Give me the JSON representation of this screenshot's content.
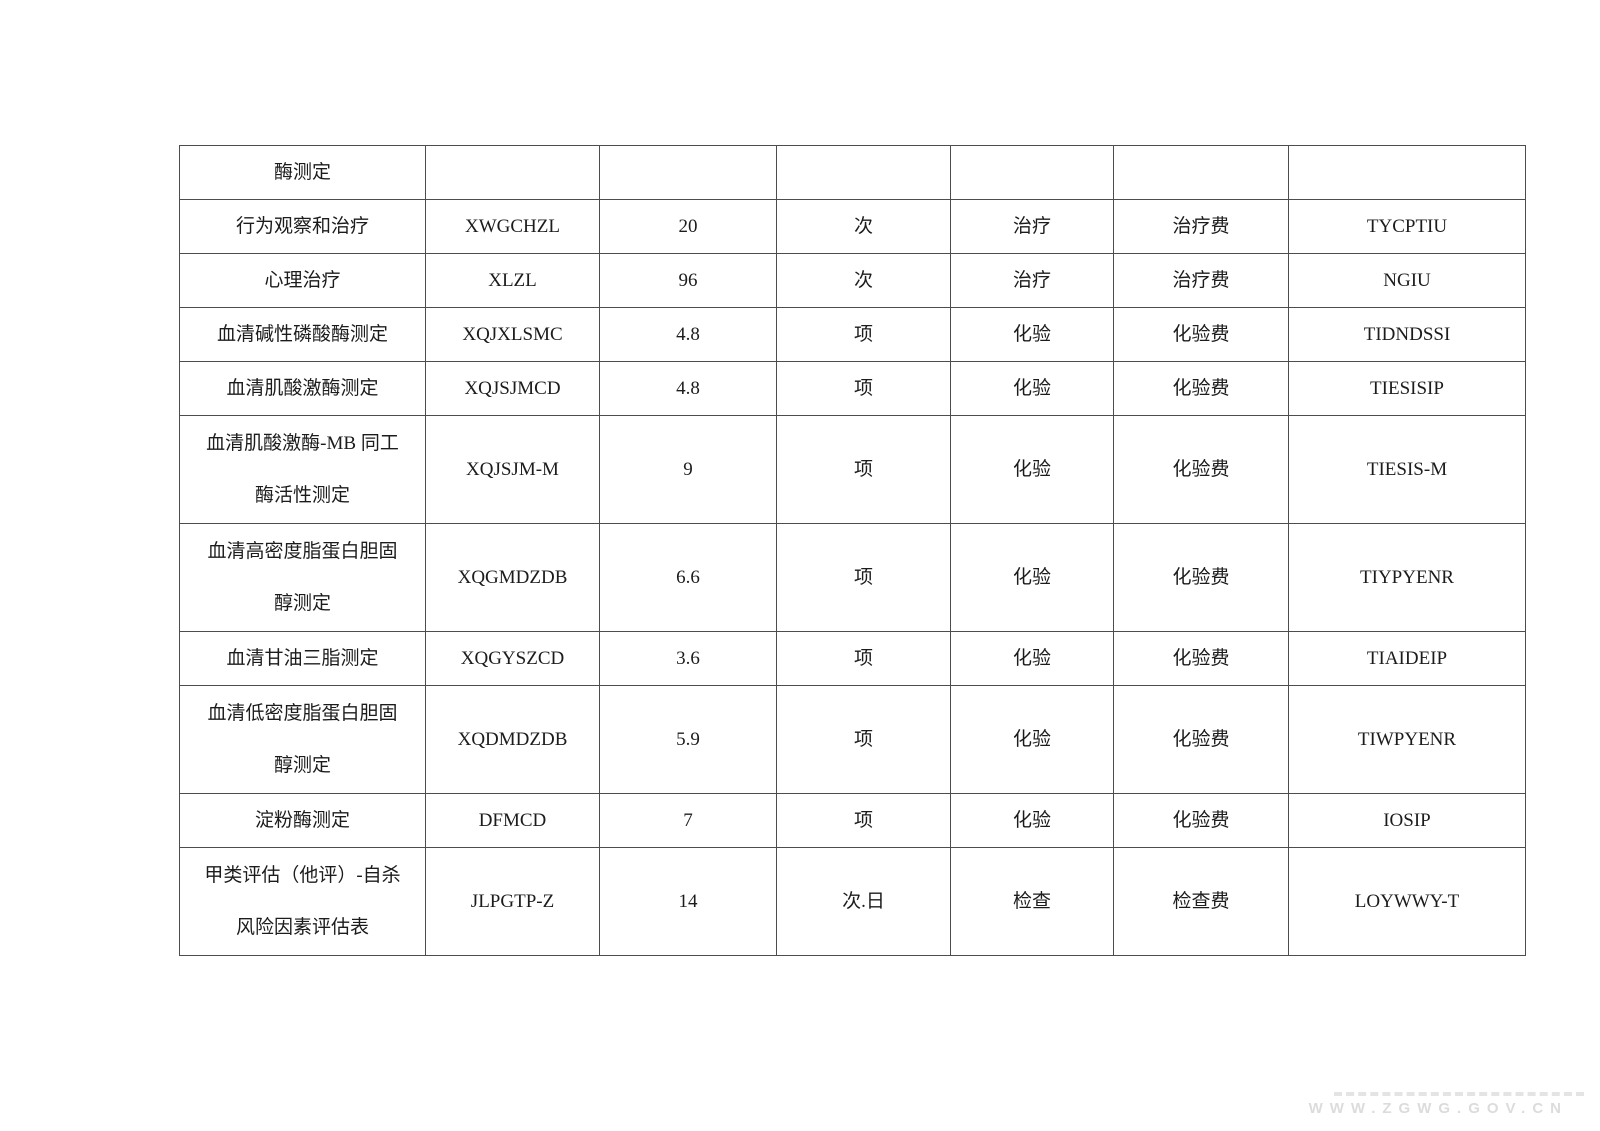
{
  "colors": {
    "table_border": "#4d4d4d",
    "text": "#1c1c1c",
    "watermark": "#dcdcdc",
    "page_background": "#ffffff"
  },
  "watermark": {
    "text": "WWW.ZGWG.GOV.CN"
  },
  "table": {
    "field_order": [
      "name",
      "code",
      "qty",
      "unit",
      "category",
      "fee",
      "code2"
    ],
    "rows": [
      {
        "name": "酶测定",
        "code": "",
        "qty": "",
        "unit": "",
        "category": "",
        "fee": "",
        "code2": ""
      },
      {
        "name": "行为观察和治疗",
        "code": "XWGCHZL",
        "qty": "20",
        "unit": "次",
        "category": "治疗",
        "fee": "治疗费",
        "code2": "TYCPTIU"
      },
      {
        "name": "心理治疗",
        "code": "XLZL",
        "qty": "96",
        "unit": "次",
        "category": "治疗",
        "fee": "治疗费",
        "code2": "NGIU"
      },
      {
        "name": "血清碱性磷酸酶测定",
        "code": "XQJXLSMC",
        "qty": "4.8",
        "unit": "项",
        "category": "化验",
        "fee": "化验费",
        "code2": "TIDNDSSI"
      },
      {
        "name": "血清肌酸激酶测定",
        "code": "XQJSJMCD",
        "qty": "4.8",
        "unit": "项",
        "category": "化验",
        "fee": "化验费",
        "code2": "TIESISIP"
      },
      {
        "name": "血清肌酸激酶-MB 同工\n酶活性测定",
        "code": "XQJSJM-M",
        "qty": "9",
        "unit": "项",
        "category": "化验",
        "fee": "化验费",
        "code2": "TIESIS-M"
      },
      {
        "name": "血清高密度脂蛋白胆固\n醇测定",
        "code": "XQGMDZDB",
        "qty": "6.6",
        "unit": "项",
        "category": "化验",
        "fee": "化验费",
        "code2": "TIYPYENR"
      },
      {
        "name": "血清甘油三脂测定",
        "code": "XQGYSZCD",
        "qty": "3.6",
        "unit": "项",
        "category": "化验",
        "fee": "化验费",
        "code2": "TIAIDEIP"
      },
      {
        "name": "血清低密度脂蛋白胆固\n醇测定",
        "code": "XQDMDZDB",
        "qty": "5.9",
        "unit": "项",
        "category": "化验",
        "fee": "化验费",
        "code2": "TIWPYENR"
      },
      {
        "name": "淀粉酶测定",
        "code": "DFMCD",
        "qty": "7",
        "unit": "项",
        "category": "化验",
        "fee": "化验费",
        "code2": "IOSIP"
      },
      {
        "name": "甲类评估（他评）-自杀\n风险因素评估表",
        "code": "JLPGTP-Z",
        "qty": "14",
        "unit": "次.日",
        "category": "检查",
        "fee": "检查费",
        "code2": "LOYWWY-T"
      }
    ]
  }
}
